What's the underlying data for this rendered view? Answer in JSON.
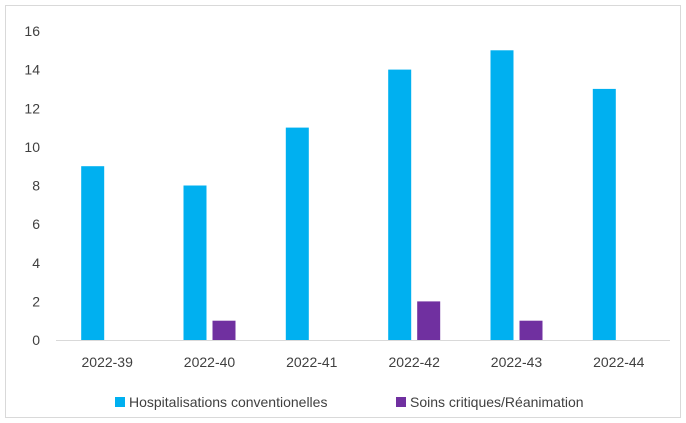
{
  "chart_data": {
    "type": "bar",
    "title": "",
    "xlabel": "",
    "ylabel": "",
    "categories": [
      "2022-39",
      "2022-40",
      "2022-41",
      "2022-42",
      "2022-43",
      "2022-44"
    ],
    "series": [
      {
        "name": "Hospitalisations conventionelles",
        "color": "#00b0f0",
        "values": [
          9,
          8,
          11,
          14,
          15,
          13
        ]
      },
      {
        "name": "Soins critiques/Réanimation",
        "color": "#7030a0",
        "values": [
          0,
          1,
          0,
          2,
          1,
          0
        ]
      }
    ],
    "ylim": [
      0,
      16
    ],
    "yticks": [
      "0",
      "2",
      "4",
      "6",
      "8",
      "10",
      "12",
      "14",
      "16"
    ],
    "grid": false,
    "legend": "bottom"
  }
}
